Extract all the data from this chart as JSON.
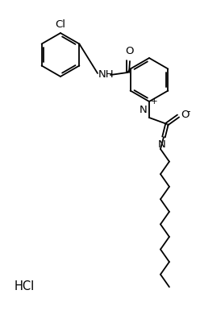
{
  "bg_color": "#ffffff",
  "line_color": "#000000",
  "lw": 1.3,
  "fs": 9.5,
  "figsize": [
    2.48,
    3.91
  ],
  "dpi": 100,
  "xlim": [
    0,
    248
  ],
  "ylim": [
    0,
    391
  ]
}
